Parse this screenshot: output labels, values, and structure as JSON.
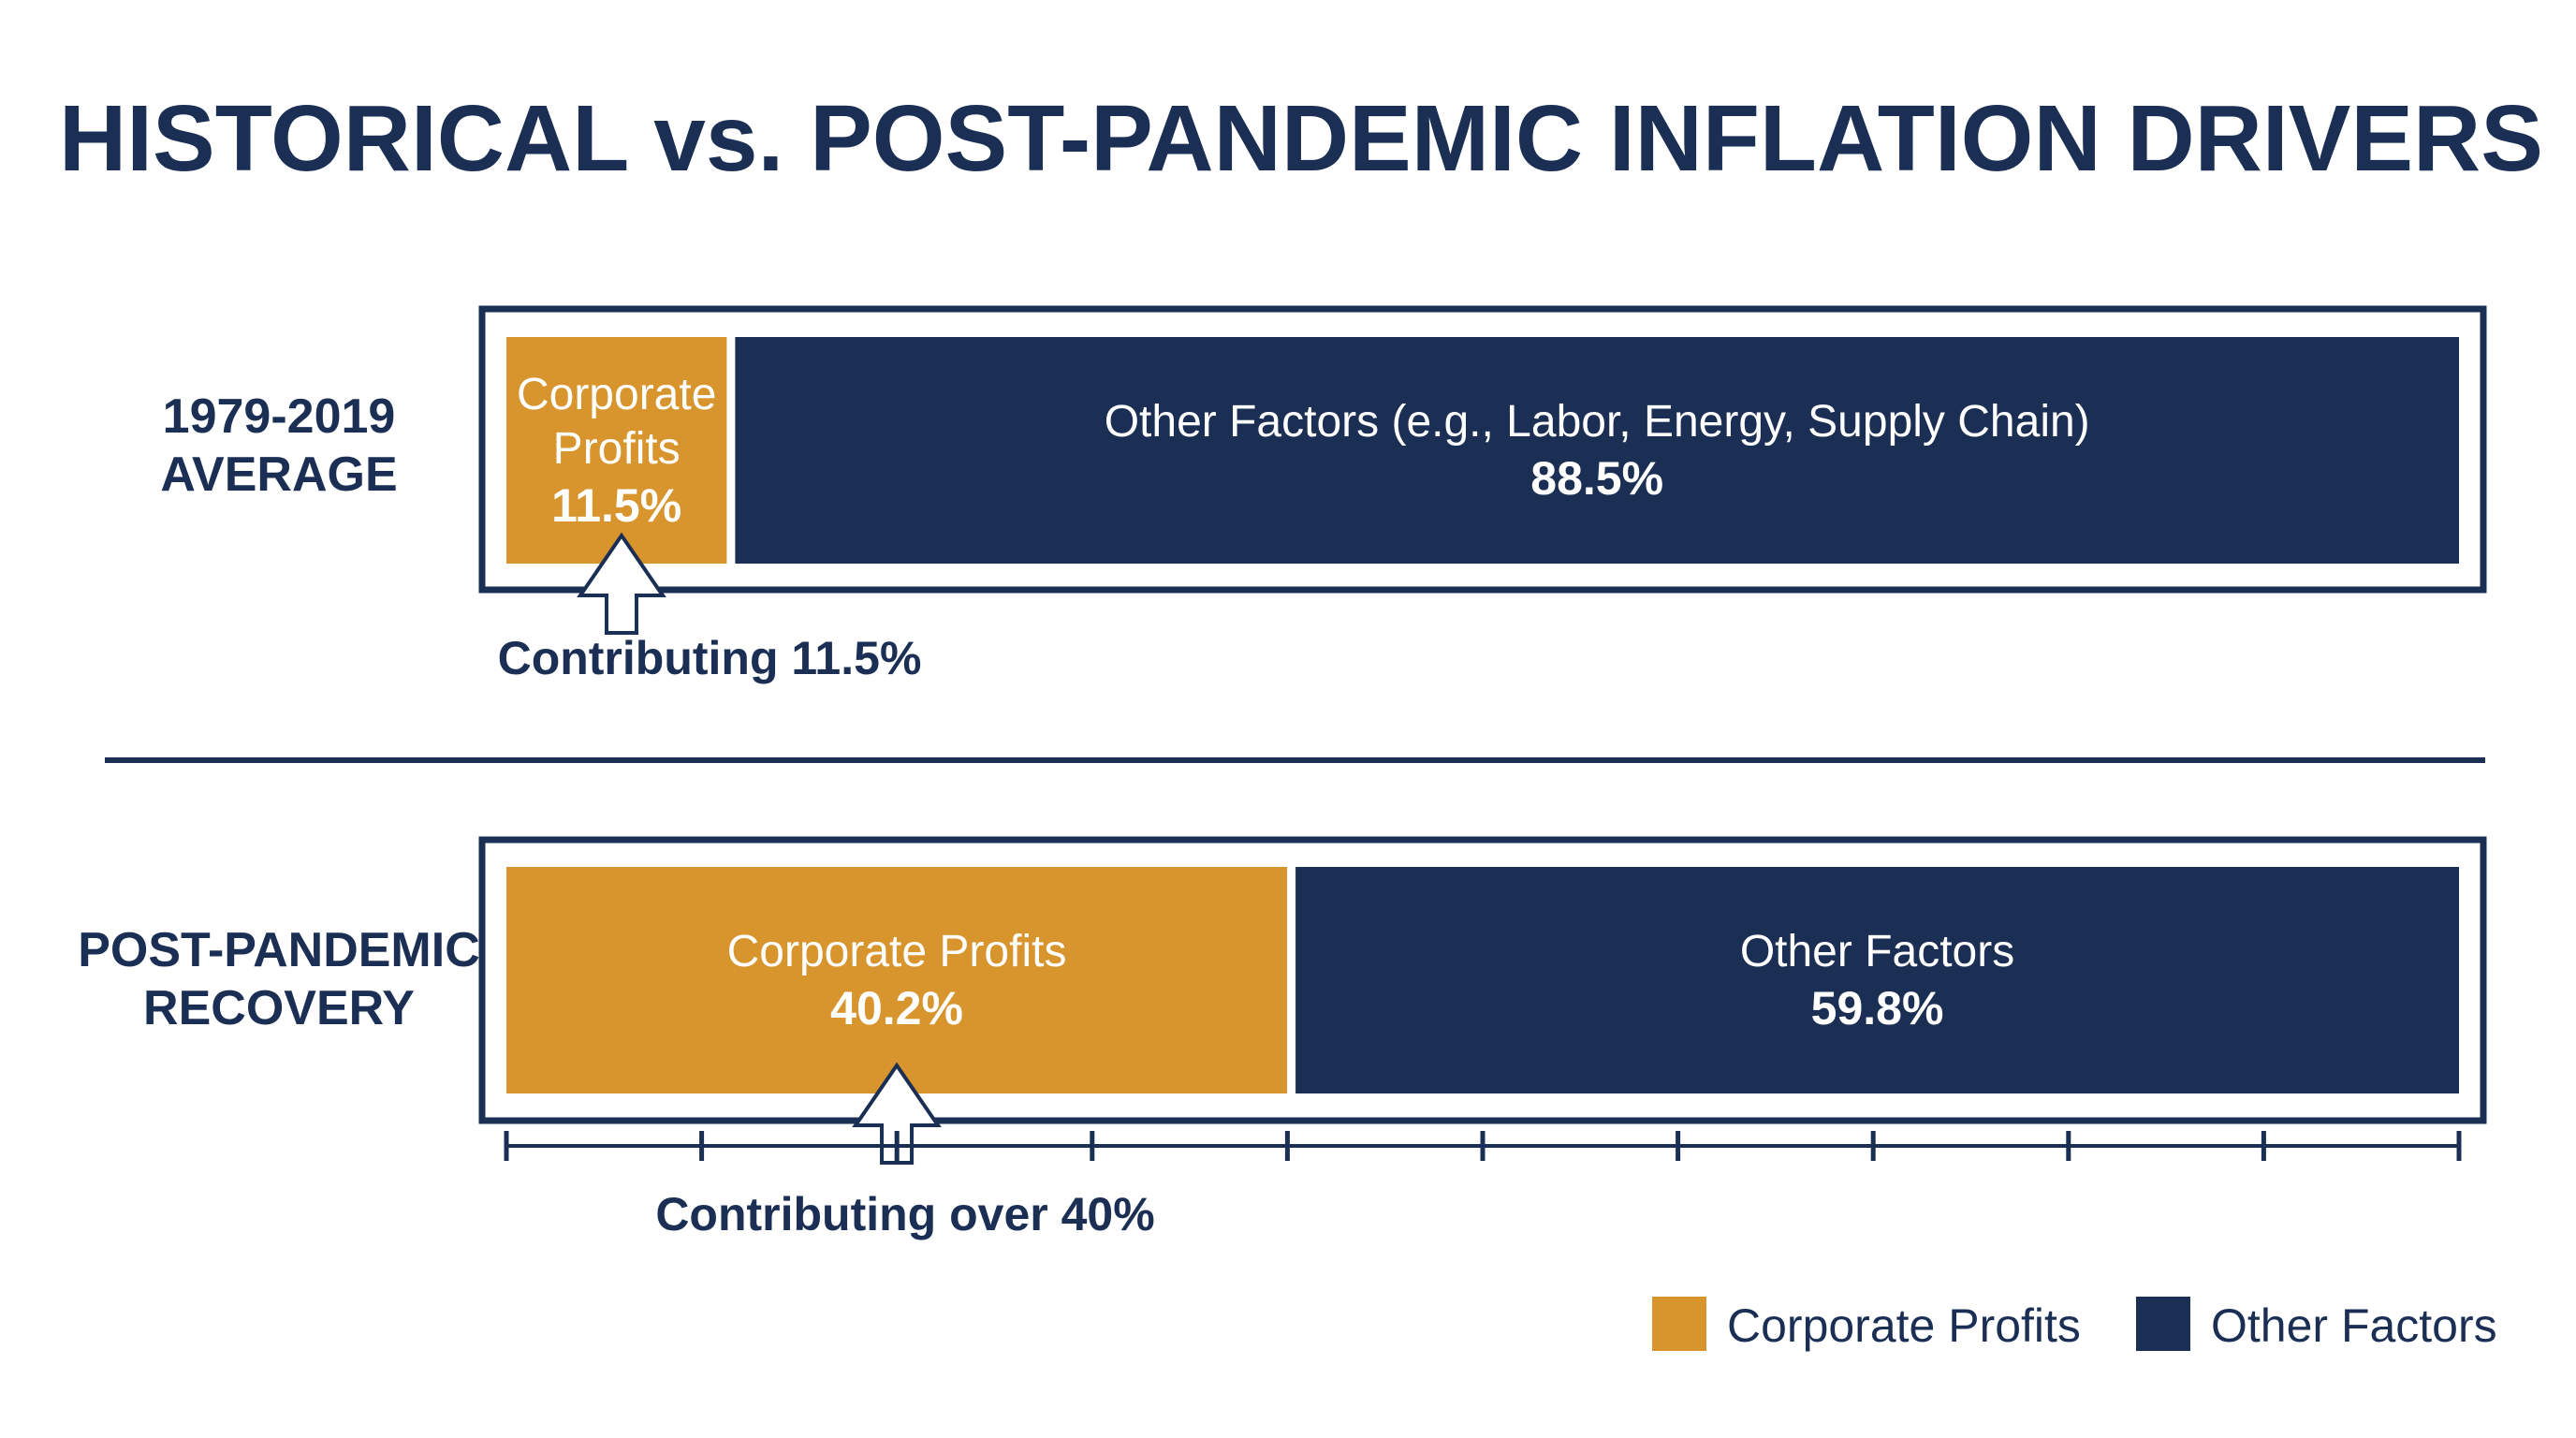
{
  "colors": {
    "profits": "#d8952e",
    "other": "#1b2f55",
    "ink": "#1b2f55",
    "background": "#ffffff"
  },
  "chart_data": {
    "type": "bar",
    "orientation": "horizontal",
    "stacked": true,
    "title": "HISTORICAL vs. POST-PANDEMIC INFLATION DRIVERS",
    "xlim": [
      0,
      100
    ],
    "ticks": 10,
    "legend_position": "bottom-right",
    "legend": [
      {
        "name": "Corporate Profits",
        "color": "#d8952e"
      },
      {
        "name": "Other Factors",
        "color": "#1b2f55"
      }
    ],
    "rows": [
      {
        "label_lines": [
          "1979-2019",
          "AVERAGE"
        ],
        "segments": [
          {
            "series": "Corporate Profits",
            "value": 11.5,
            "label_lines": [
              "Corporate",
              "Profits"
            ],
            "value_label": "11.5%"
          },
          {
            "series": "Other Factors",
            "value": 88.5,
            "label_lines": [
              "Other Factors (e.g., Labor, Energy, Supply Chain)"
            ],
            "value_label": "88.5%"
          }
        ],
        "annotation": "Contributing 11.5%"
      },
      {
        "label_lines": [
          "POST-PANDEMIC",
          "RECOVERY"
        ],
        "segments": [
          {
            "series": "Corporate Profits",
            "value": 40.2,
            "label_lines": [
              "Corporate Profits"
            ],
            "value_label": "40.2%"
          },
          {
            "series": "Other Factors",
            "value": 59.8,
            "label_lines": [
              "Other Factors"
            ],
            "value_label": "59.8%"
          }
        ],
        "annotation": "Contributing over 40%"
      }
    ]
  }
}
